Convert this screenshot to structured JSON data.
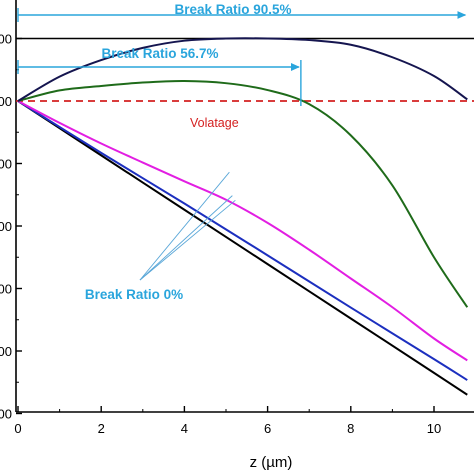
{
  "chart_data": {
    "type": "line",
    "xlabel": "z (µm)",
    "ylabel": "",
    "xlim": [
      0,
      10.8
    ],
    "ylim": [
      -1.0,
      0.2
    ],
    "x_ticks": [
      0,
      2,
      4,
      6,
      8,
      10
    ],
    "x_tick_labels": [
      "0",
      "2",
      "4",
      "6",
      "8",
      "10"
    ],
    "y_ticks": [
      -1.0,
      -0.8,
      -0.6,
      -0.4,
      -0.2,
      0.0,
      0.2
    ],
    "y_tick_labels": [
      "00",
      "00",
      "00",
      "00",
      "00",
      "00",
      "00"
    ],
    "grid": false,
    "colors": {
      "black": "#000000",
      "blue": "#1c2fbf",
      "magenta": "#e21ee2",
      "green": "#1f6b1a",
      "navy": "#15154f",
      "voltage": "#d42020",
      "annotation": "#2aa5dc"
    },
    "series": [
      {
        "color": "black",
        "x": [
          0,
          2,
          4,
          6,
          8,
          10,
          10.8
        ],
        "y": [
          0,
          -0.174,
          -0.348,
          -0.522,
          -0.696,
          -0.87,
          -0.94
        ]
      },
      {
        "color": "blue",
        "x": [
          0,
          2,
          4,
          6,
          8,
          10,
          10.8
        ],
        "y": [
          0,
          -0.166,
          -0.328,
          -0.494,
          -0.661,
          -0.826,
          -0.893
        ]
      },
      {
        "color": "magenta",
        "x": [
          0,
          1,
          2,
          3,
          4,
          5,
          6,
          7,
          8,
          9,
          10,
          10.8
        ],
        "y": [
          0,
          -0.07,
          -0.136,
          -0.197,
          -0.257,
          -0.316,
          -0.39,
          -0.476,
          -0.568,
          -0.66,
          -0.76,
          -0.83
        ]
      },
      {
        "color": "green",
        "x": [
          0,
          1,
          2,
          3,
          4,
          5,
          6,
          7,
          8,
          9,
          10,
          10.8
        ],
        "y": [
          0,
          0.034,
          0.048,
          0.059,
          0.064,
          0.057,
          0.035,
          -0.01,
          -0.11,
          -0.27,
          -0.5,
          -0.66
        ]
      },
      {
        "color": "navy",
        "x": [
          0,
          1,
          2,
          3,
          4,
          5,
          6,
          7,
          8,
          9,
          10,
          10.8
        ],
        "y": [
          0,
          0.078,
          0.131,
          0.17,
          0.193,
          0.2,
          0.2,
          0.195,
          0.18,
          0.14,
          0.08,
          0.005
        ]
      }
    ],
    "reference_lines": [
      {
        "y": 0.0,
        "label": "Volatage",
        "style": "dashed",
        "color": "voltage"
      },
      {
        "y": 0.2,
        "style": "solid",
        "color": "black"
      }
    ],
    "annotations": [
      {
        "text": "Break Ratio 90.5%",
        "x_start": 0,
        "x_end": 10.8
      },
      {
        "text": "Break Ratio 56.7%",
        "x_start": 0,
        "x_end": 6.8
      },
      {
        "text": "Break Ratio 0%",
        "points_to": [
          [
            4.6,
            -0.215
          ],
          [
            4.6,
            -0.29
          ],
          [
            4.6,
            -0.305
          ]
        ]
      }
    ]
  }
}
